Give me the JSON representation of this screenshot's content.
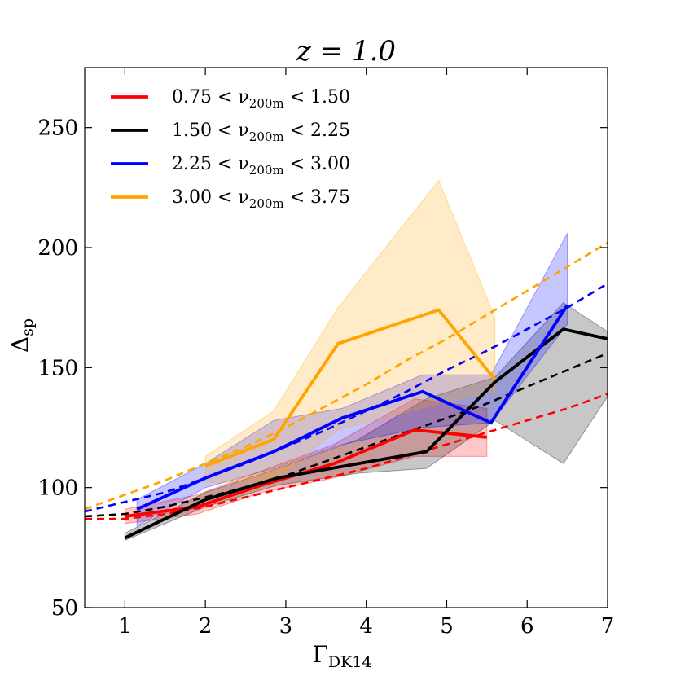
{
  "chart_data": {
    "type": "line",
    "title": "z = 1.0",
    "title_main": "z = 1.0",
    "xlabel": "ΓDK14",
    "xlabel_main": "Γ",
    "xlabel_sub": "DK14",
    "ylabel": "Δsp",
    "ylabel_main": "Δ",
    "ylabel_sub": "sp",
    "xlim": [
      0.5,
      7
    ],
    "ylim": [
      50,
      275
    ],
    "xticks": [
      1,
      2,
      3,
      4,
      5,
      6,
      7
    ],
    "yticks": [
      50,
      100,
      150,
      200,
      250
    ],
    "grid": false,
    "legend_position": "top-left",
    "series": [
      {
        "name": "0.75 < ν200m < 1.50",
        "legend_prefix": "0.75 < ν",
        "legend_sub": "200m",
        "legend_suffix": " < 1.50",
        "color": "#ff0000",
        "x": [
          1.0,
          1.9,
          2.7,
          3.6,
          4.6,
          5.5
        ],
        "y": [
          88,
          92,
          101,
          110,
          124,
          121
        ],
        "lower": [
          85,
          89,
          98,
          104,
          113,
          113
        ],
        "upper": [
          91,
          97,
          107,
          118,
          137,
          133
        ],
        "fit_x": [
          0.5,
          1.0,
          1.5,
          2.0,
          2.5,
          3.0,
          3.5,
          4.0,
          4.5,
          5.0,
          5.5,
          6.0,
          6.5,
          7.0
        ],
        "fit_y": [
          87,
          87,
          89,
          92,
          96,
          100,
          104,
          108,
          113,
          118,
          123,
          128,
          133,
          139
        ]
      },
      {
        "name": "1.50 < ν200m < 2.25",
        "legend_prefix": "1.50 < ν",
        "legend_sub": "200m",
        "legend_suffix": " < 2.25",
        "color": "#000000",
        "x": [
          1.0,
          2.0,
          2.9,
          3.9,
          4.75,
          5.6,
          6.45,
          7.0
        ],
        "y": [
          79,
          95,
          104,
          110,
          115,
          144,
          166,
          162
        ],
        "lower": [
          78,
          92,
          101,
          106,
          108,
          128,
          110,
          138
        ],
        "upper": [
          81,
          98,
          108,
          120,
          137,
          146,
          177,
          165
        ],
        "fit_x": [
          0.5,
          1.0,
          1.5,
          2.0,
          2.5,
          3.0,
          3.5,
          4.0,
          4.5,
          5.0,
          5.5,
          6.0,
          6.5,
          7.0
        ],
        "fit_y": [
          88,
          89,
          92,
          96,
          100,
          105,
          111,
          117,
          123,
          129,
          135,
          142,
          149,
          156
        ]
      },
      {
        "name": "2.25 < ν200m < 3.00",
        "legend_prefix": "2.25 < ν",
        "legend_sub": "200m",
        "legend_suffix": " < 3.00",
        "color": "#0000ff",
        "x": [
          1.15,
          2.0,
          2.85,
          3.7,
          4.7,
          5.55,
          6.5
        ],
        "y": [
          91,
          104,
          115,
          129,
          140,
          127,
          176
        ],
        "lower": [
          84,
          100,
          108,
          118,
          125,
          127,
          168
        ],
        "upper": [
          95,
          110,
          128,
          133,
          147,
          147,
          206
        ],
        "fit_x": [
          0.5,
          1.0,
          1.5,
          2.0,
          2.5,
          3.0,
          3.5,
          4.0,
          4.5,
          5.0,
          5.5,
          6.0,
          6.5,
          7.0
        ],
        "fit_y": [
          90,
          94,
          98,
          104,
          110,
          117,
          124,
          132,
          140,
          149,
          157,
          166,
          175,
          185
        ]
      },
      {
        "name": "3.00 < ν200m < 3.75",
        "legend_prefix": "3.00 < ν",
        "legend_sub": "200m",
        "legend_suffix": " < 3.75",
        "color": "#ffa500",
        "x": [
          2.0,
          2.85,
          3.65,
          4.9,
          5.6
        ],
        "y": [
          109,
          120,
          160,
          174,
          145
        ],
        "lower": [
          102,
          103,
          124,
          135,
          140
        ],
        "upper": [
          113,
          132,
          175,
          228,
          171
        ],
        "fit_x": [
          0.5,
          1.0,
          1.5,
          2.0,
          2.5,
          3.0,
          3.5,
          4.0,
          4.5,
          5.0,
          5.5,
          6.0,
          6.5,
          7.0
        ],
        "fit_y": [
          91,
          97,
          103,
          110,
          117,
          125,
          134,
          143,
          153,
          162,
          172,
          182,
          192,
          202
        ]
      }
    ]
  }
}
